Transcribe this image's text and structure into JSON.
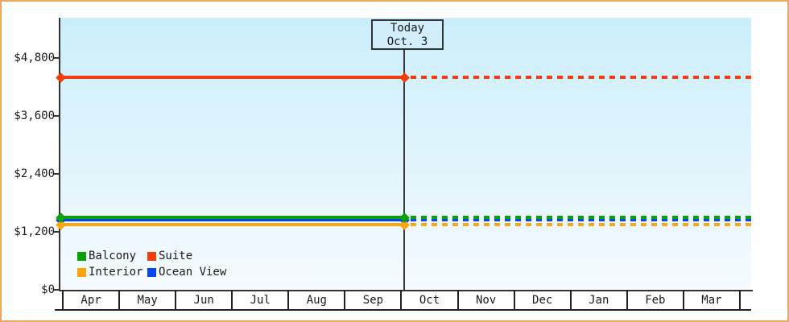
{
  "window": {
    "border_color": "#eda85f",
    "plot_bg_top": "#cbeefb",
    "plot_bg_bottom": "#f5fbfe"
  },
  "today_marker": {
    "line1": "Today",
    "line2": "Oct. 3"
  },
  "legend": {
    "entries": [
      {
        "label": "Balcony",
        "color": "#0aa00a"
      },
      {
        "label": "Suite",
        "color": "#f43d0e"
      },
      {
        "label": "Interior",
        "color": "#fda50f"
      },
      {
        "label": "Ocean View",
        "color": "#0646f0"
      }
    ]
  },
  "chart_data": {
    "type": "line",
    "title": "",
    "xlabel": "",
    "ylabel": "",
    "x": [
      "Apr",
      "May",
      "Jun",
      "Jul",
      "Aug",
      "Sep",
      "Oct",
      "Nov",
      "Dec",
      "Jan",
      "Feb",
      "Mar"
    ],
    "y_ticks": [
      {
        "label": "$4,800",
        "value": 4800
      },
      {
        "label": "$3,600",
        "value": 3600
      },
      {
        "label": "$2,400",
        "value": 2400
      },
      {
        "label": "$1,200",
        "value": 1200
      },
      {
        "label": "$0",
        "value": 0
      }
    ],
    "ylim": [
      0,
      5640
    ],
    "grid": false,
    "legend_position": "bottom-left inside plot",
    "annotation": {
      "label": "Today",
      "date": "Oct. 3",
      "x_month": "Oct",
      "x_day": 3
    },
    "line_style_note": "all series are flat constant lines: solid before Oct. 3, dashed after",
    "series": [
      {
        "name": "Ocean View",
        "color": "#0646f0",
        "value": 1450
      },
      {
        "name": "Interior",
        "color": "#fda50f",
        "value": 1350
      },
      {
        "name": "Balcony",
        "color": "#0aa00a",
        "value": 1500
      },
      {
        "name": "Suite",
        "color": "#f43d0e",
        "value": 4400
      }
    ]
  }
}
